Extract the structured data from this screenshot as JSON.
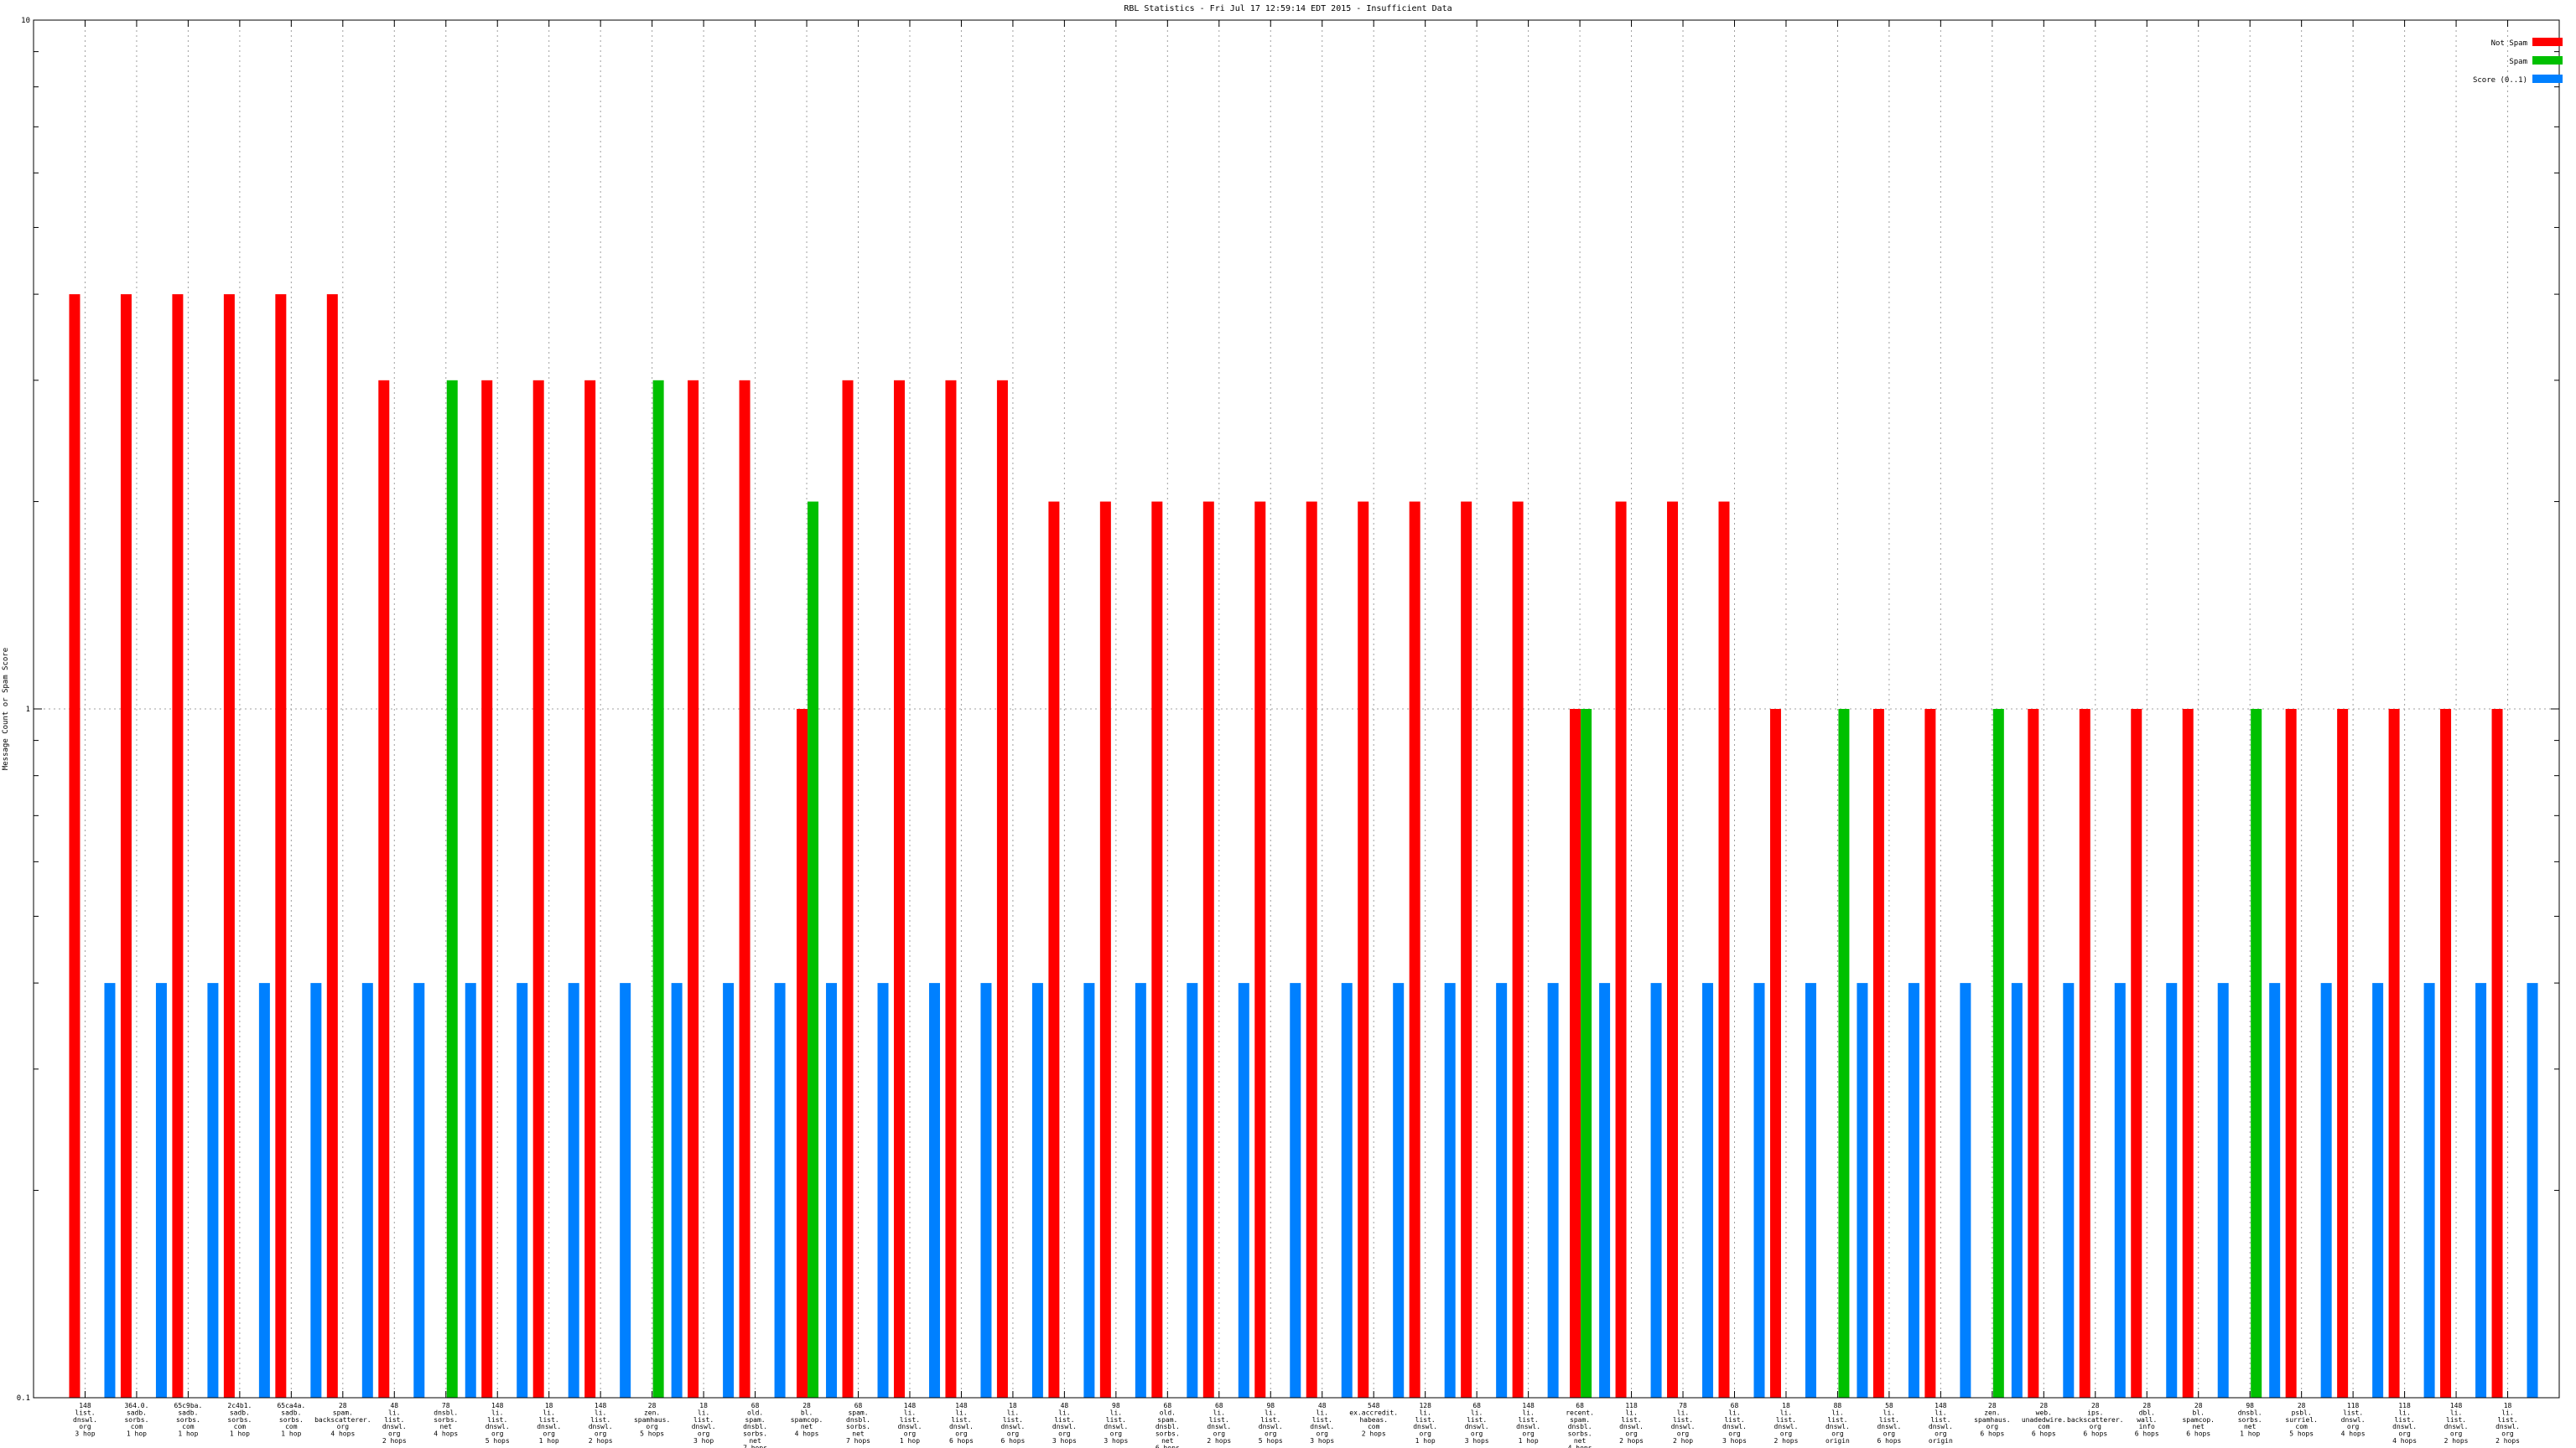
{
  "chart_data": {
    "type": "bar",
    "title": "RBL Statistics - Fri Jul 17 12:59:14 EDT 2015 - Insufficient Data",
    "xlabel": "",
    "ylabel": "Message Count or Spam Score",
    "ylim": [
      0.1,
      10
    ],
    "yscale": "log",
    "yticks": [
      {
        "value": 0.1,
        "label": "0.1"
      },
      {
        "value": 1,
        "label": "1"
      },
      {
        "value": 10,
        "label": "10"
      }
    ],
    "grid": true,
    "legend_position": "top-right",
    "categories": [
      [
        "148",
        "list.",
        "dnswl.",
        "org",
        "3 hop"
      ],
      [
        "364.0.",
        "sadb.",
        "sorbs.",
        "com",
        "1 hop"
      ],
      [
        "65c9ba.",
        "sadb.",
        "sorbs.",
        "com",
        "1 hop"
      ],
      [
        "2c4b1.",
        "sadb.",
        "sorbs.",
        "com",
        "1 hop"
      ],
      [
        "65ca4a.",
        "sadb.",
        "sorbs.",
        "com",
        "1 hop"
      ],
      [
        "28",
        "spam.",
        "backscatterer.",
        "org",
        "4 hops"
      ],
      [
        "48",
        "li.",
        "list.",
        "dnswl.",
        "org",
        "2 hops"
      ],
      [
        "78",
        "dnsbl.",
        "sorbs.",
        "net",
        "4 hops"
      ],
      [
        "148",
        "li.",
        "list.",
        "dnswl.",
        "org",
        "5 hops"
      ],
      [
        "18",
        "li.",
        "list.",
        "dnswl.",
        "org",
        "1 hop"
      ],
      [
        "148",
        "li.",
        "list.",
        "dnswl.",
        "org",
        "2 hops"
      ],
      [
        "28",
        "zen.",
        "spamhaus.",
        "org",
        "5 hops"
      ],
      [
        "18",
        "li.",
        "list.",
        "dnswl.",
        "org",
        "3 hop"
      ],
      [
        "68",
        "old.",
        "spam.",
        "dnsbl.",
        "sorbs.",
        "net",
        "7 hops"
      ],
      [
        "28",
        "bl.",
        "spamcop.",
        "net",
        "4 hops"
      ],
      [
        "68",
        "spam.",
        "dnsbl.",
        "sorbs.",
        "net",
        "7 hops"
      ],
      [
        "148",
        "li.",
        "list.",
        "dnswl.",
        "org",
        "1 hop"
      ],
      [
        "148",
        "li.",
        "list.",
        "dnswl.",
        "org",
        "6 hops"
      ],
      [
        "18",
        "li.",
        "list.",
        "dnswl.",
        "org",
        "6 hops"
      ],
      [
        "48",
        "li.",
        "list.",
        "dnswl.",
        "org",
        "3 hops"
      ],
      [
        "98",
        "li.",
        "list.",
        "dnswl.",
        "org",
        "3 hops"
      ],
      [
        "68",
        "old.",
        "spam.",
        "dnsbl.",
        "sorbs.",
        "net",
        "6 hops"
      ],
      [
        "68",
        "li.",
        "list.",
        "dnswl.",
        "org",
        "2 hops"
      ],
      [
        "98",
        "li.",
        "list.",
        "dnswl.",
        "org",
        "5 hops"
      ],
      [
        "48",
        "li.",
        "list.",
        "dnswl.",
        "org",
        "3 hops"
      ],
      [
        "548",
        "ex.accredit.",
        "habeas.",
        "com",
        "2 hops"
      ],
      [
        "128",
        "li.",
        "list.",
        "dnswl.",
        "org",
        "1 hop"
      ],
      [
        "68",
        "li.",
        "list.",
        "dnswl.",
        "org",
        "3 hops"
      ],
      [
        "148",
        "li.",
        "list.",
        "dnswl.",
        "org",
        "1 hop"
      ],
      [
        "68",
        "recent.",
        "spam.",
        "dnsbl.",
        "sorbs.",
        "net",
        "4 hops"
      ],
      [
        "118",
        "li.",
        "list.",
        "dnswl.",
        "org",
        "2 hops"
      ],
      [
        "78",
        "li.",
        "list.",
        "dnswl.",
        "org",
        "2 hop"
      ],
      [
        "68",
        "li.",
        "list.",
        "dnswl.",
        "org",
        "3 hops"
      ],
      [
        "18",
        "li.",
        "list.",
        "dnswl.",
        "org",
        "2 hops"
      ],
      [
        "88",
        "li.",
        "list.",
        "dnswl.",
        "org",
        "origin"
      ],
      [
        "58",
        "li.",
        "list.",
        "dnswl.",
        "org",
        "6 hops"
      ],
      [
        "148",
        "li.",
        "list.",
        "dnswl.",
        "org",
        "origin"
      ],
      [
        "28",
        "zen.",
        "spamhaus.",
        "org",
        "6 hops"
      ],
      [
        "28",
        "web.",
        "unadedwire.",
        "com",
        "6 hops"
      ],
      [
        "28",
        "ips.",
        "backscatterer.",
        "org",
        "6 hops"
      ],
      [
        "28",
        "dbl.",
        "wall.",
        "info",
        "6 hops"
      ],
      [
        "28",
        "bl.",
        "spamcop.",
        "net",
        "6 hops"
      ],
      [
        "98",
        "dnsbl.",
        "sorbs.",
        "net",
        "1 hop"
      ],
      [
        "28",
        "psbl.",
        "surriel.",
        "com",
        "5 hops"
      ],
      [
        "118",
        "list.",
        "dnswl.",
        "org",
        "4 hops"
      ],
      [
        "118",
        "li.",
        "list.",
        "dnswl.",
        "org",
        "4 hops"
      ],
      [
        "148",
        "li.",
        "list.",
        "dnswl.",
        "org",
        "2 hops"
      ],
      [
        "18",
        "li.",
        "list.",
        "dnswl.",
        "org",
        "2 hops"
      ]
    ],
    "series": [
      {
        "name": "Not Spam",
        "color": "#ff0000",
        "values": [
          4,
          4,
          4,
          4,
          4,
          4,
          3,
          0,
          3,
          3,
          3,
          0,
          3,
          3,
          1,
          3,
          3,
          3,
          3,
          2,
          2,
          2,
          2,
          2,
          2,
          2,
          2,
          2,
          2,
          1,
          2,
          2,
          2,
          1,
          0,
          1,
          1,
          0,
          1,
          1,
          1,
          1,
          0,
          1,
          1,
          1,
          1,
          1
        ]
      },
      {
        "name": "Spam",
        "color": "#00c000",
        "values": [
          0,
          0,
          0,
          0,
          0,
          0,
          0,
          3,
          0,
          0,
          0,
          3,
          0,
          0,
          2,
          0,
          0,
          0,
          0,
          0,
          0,
          0,
          0,
          0,
          0,
          0,
          0,
          0,
          0,
          1,
          0,
          0,
          0,
          0,
          1,
          0,
          0,
          1,
          0,
          0,
          0,
          0,
          1,
          0,
          0,
          0,
          0,
          0
        ]
      },
      {
        "name": "Score (0..1)",
        "color": "#0080ff",
        "values": [
          0.4,
          0.4,
          0.4,
          0.4,
          0.4,
          0.4,
          0.4,
          0.4,
          0.4,
          0.4,
          0.4,
          0.4,
          0.4,
          0.4,
          0.4,
          0.4,
          0.4,
          0.4,
          0.4,
          0.4,
          0.4,
          0.4,
          0.4,
          0.4,
          0.4,
          0.4,
          0.4,
          0.4,
          0.4,
          0.4,
          0.4,
          0.4,
          0.4,
          0.4,
          0.4,
          0.4,
          0.4,
          0.4,
          0.4,
          0.4,
          0.4,
          0.4,
          0.4,
          0.4,
          0.4,
          0.4,
          0.4,
          0.4
        ]
      }
    ]
  }
}
